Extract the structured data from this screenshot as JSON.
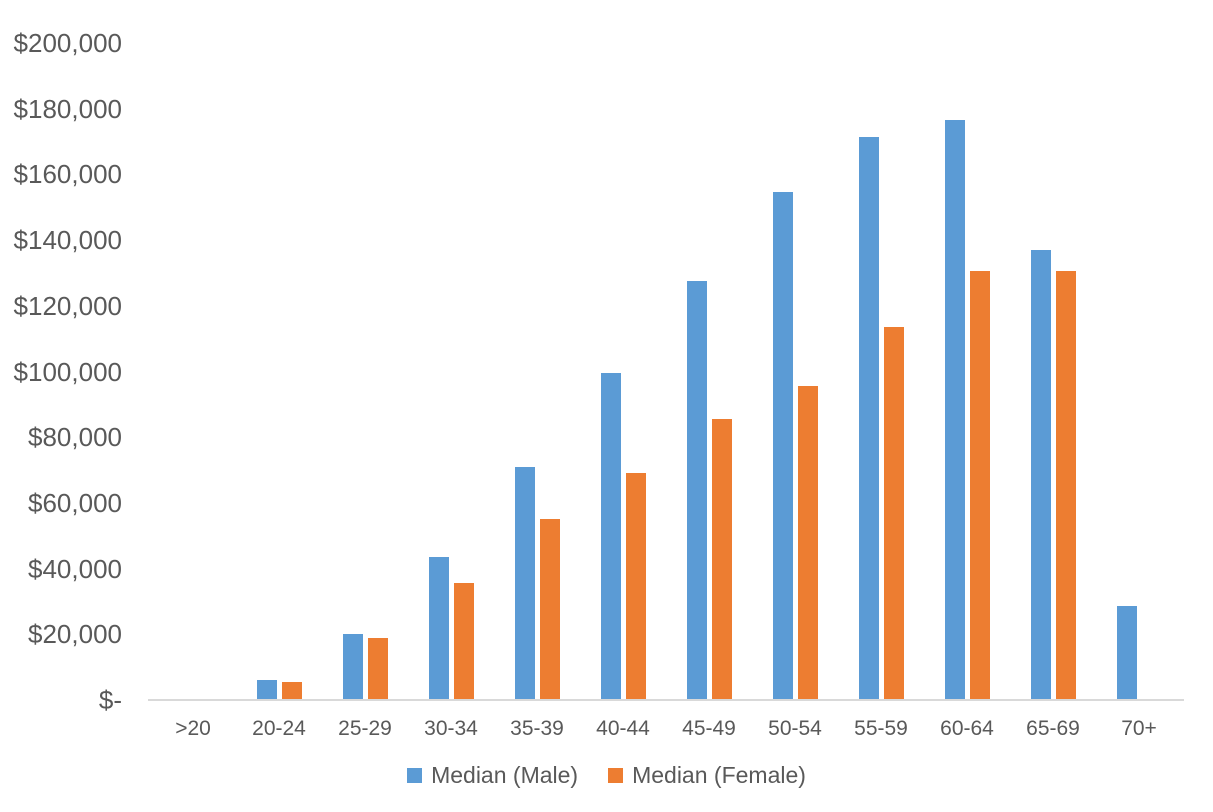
{
  "chart_data": {
    "type": "bar",
    "title": "",
    "xlabel": "",
    "ylabel": "",
    "categories": [
      ">20",
      "20-24",
      "25-29",
      "30-34",
      "35-39",
      "40-44",
      "45-49",
      "50-54",
      "55-59",
      "60-64",
      "65-69",
      "70+"
    ],
    "series": [
      {
        "name": "Median (Male)",
        "color": "#5B9BD5",
        "values": [
          0,
          6000,
          20000,
          43500,
          71000,
          99500,
          127500,
          154500,
          171500,
          176500,
          137000,
          28500
        ]
      },
      {
        "name": "Median (Female)",
        "color": "#ED7D31",
        "values": [
          0,
          5500,
          19000,
          35500,
          55000,
          69000,
          85500,
          95500,
          113500,
          130500,
          130500,
          0
        ]
      }
    ],
    "y_axis": {
      "min": 0,
      "max": 200000,
      "ticks": [
        {
          "value": 0,
          "label": "$-"
        },
        {
          "value": 20000,
          "label": "$20,000"
        },
        {
          "value": 40000,
          "label": "$40,000"
        },
        {
          "value": 60000,
          "label": "$60,000"
        },
        {
          "value": 80000,
          "label": "$80,000"
        },
        {
          "value": 100000,
          "label": "$100,000"
        },
        {
          "value": 120000,
          "label": "$120,000"
        },
        {
          "value": 140000,
          "label": "$140,000"
        },
        {
          "value": 160000,
          "label": "$160,000"
        },
        {
          "value": 180000,
          "label": "$180,000"
        },
        {
          "value": 200000,
          "label": "$200,000"
        }
      ]
    },
    "grid": false,
    "legend_position": "bottom"
  }
}
